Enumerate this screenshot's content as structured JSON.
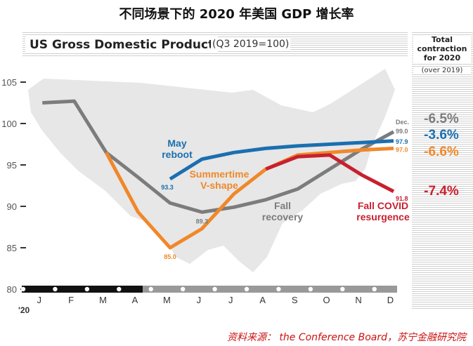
{
  "header": {
    "title": "不同场景下的 2020 年美国 GDP 增长率"
  },
  "source": "资料来源： the Conference Board，苏宁金融研究院",
  "colors": {
    "reboot": "#1a6fb0",
    "vshape": "#f0882a",
    "recovery": "#7c7c7c",
    "resurgence": "#c8202f"
  },
  "sidebar": {
    "title_lines": [
      "Total",
      "contraction",
      "for 2020"
    ],
    "note": "(over 2019)",
    "values": [
      {
        "text": "-6.5%",
        "series": "Fall recovery"
      },
      {
        "text": "-3.6%",
        "series": "May reboot"
      },
      {
        "text": "-6.6%",
        "series": "Summertime V-shape"
      },
      {
        "text": "-7.4%",
        "series": "Fall COVID resurgence"
      }
    ]
  },
  "chart_data": {
    "type": "line",
    "title": "US Gross Domestic Product",
    "subtitle": "(Q3 2019=100)",
    "x": [
      "J",
      "F",
      "M",
      "A",
      "M",
      "J",
      "J",
      "A",
      "S",
      "O",
      "N",
      "D"
    ],
    "x_year_label": "'20",
    "xlabel": "",
    "ylabel": "",
    "ylim": [
      80,
      105
    ],
    "yticks": [
      80,
      85,
      90,
      95,
      100,
      105
    ],
    "series": [
      {
        "name": "Fall recovery",
        "color": "#7c7c7c",
        "label_lines": [
          "Fall",
          "recovery"
        ],
        "x": [
          0.6,
          1.6,
          2.6,
          3.6,
          4.6,
          5.6,
          6.6,
          7.6,
          8.6,
          9.6,
          10.6,
          11.6
        ],
        "values": [
          102.5,
          102.7,
          96.5,
          93.5,
          90.4,
          89.3,
          89.9,
          90.8,
          92.1,
          94.5,
          96.9,
          99.0
        ],
        "end_label": "99.0",
        "end_sub": "Dec.",
        "min_label": "89.3"
      },
      {
        "name": "May reboot",
        "color": "#1a6fb0",
        "label_lines": [
          "May",
          "reboot"
        ],
        "x": [
          4.6,
          5.6,
          6.6,
          7.6,
          8.6,
          9.6,
          10.6,
          11.6
        ],
        "values": [
          93.3,
          95.7,
          96.5,
          97.0,
          97.3,
          97.5,
          97.7,
          97.9
        ],
        "end_label": "97.9",
        "min_label": "93.3"
      },
      {
        "name": "Summertime V-shape",
        "color": "#f0882a",
        "label_lines": [
          "Summertime",
          "V-shape"
        ],
        "x": [
          2.6,
          3.6,
          4.6,
          5.6,
          6.6,
          7.6,
          8.6,
          9.6,
          10.6,
          11.6
        ],
        "values": [
          96.5,
          89.3,
          85.0,
          87.3,
          91.5,
          94.5,
          96.2,
          96.5,
          96.8,
          97.0
        ],
        "end_label": "97.0",
        "min_label": "85.0"
      },
      {
        "name": "Fall COVID resurgence",
        "color": "#c8202f",
        "label_lines": [
          "Fall COVID",
          "resurgence"
        ],
        "x": [
          7.6,
          8.6,
          9.6,
          10.6,
          11.6
        ],
        "values": [
          94.5,
          96.0,
          96.2,
          93.8,
          91.8
        ],
        "end_label": "91.8"
      }
    ]
  }
}
